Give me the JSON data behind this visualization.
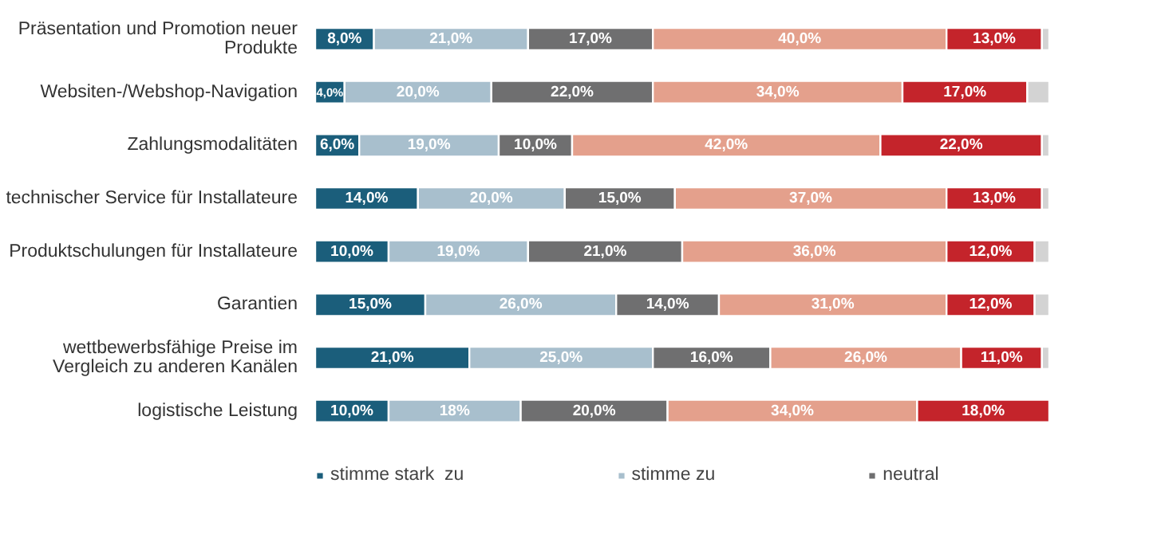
{
  "chart_data": {
    "type": "bar",
    "orientation": "horizontal",
    "stacked": true,
    "legend": "bottom",
    "grid": false,
    "categories": [
      "Präsentation und Promotion neuer Produkte",
      "Websiten-/Webshop-Navigation",
      "Zahlungsmodalitäten",
      "technischer Service für Installateure",
      "Produktschulungen für Installateure",
      "Garantien",
      "wettbewerbsfähige Preise im Vergleich zu anderen Kanälen",
      "logistische Leistung"
    ],
    "series": [
      {
        "name": "stimme stark  zu",
        "color": "#1b5e7b",
        "values": [
          8,
          4,
          6,
          14,
          10,
          15,
          21,
          10
        ],
        "value_labels": [
          "8,0%",
          "4,0%",
          "6,0%",
          "14,0%",
          "10,0%",
          "15,0%",
          "21,0%",
          "10,0%"
        ]
      },
      {
        "name": "stimme zu",
        "color": "#a8bfcd",
        "values": [
          21,
          20,
          19,
          20,
          19,
          26,
          25,
          18
        ],
        "value_labels": [
          "21,0%",
          "20,0%",
          "19,0%",
          "20,0%",
          "19,0%",
          "26,0%",
          "25,0%",
          "18%"
        ]
      },
      {
        "name": "neutral",
        "color": "#6f6f70",
        "values": [
          17,
          22,
          10,
          15,
          21,
          14,
          16,
          20
        ],
        "value_labels": [
          "17,0%",
          "22,0%",
          "10,0%",
          "15,0%",
          "21,0%",
          "14,0%",
          "16,0%",
          "20,0%"
        ]
      },
      {
        "color": "#e4a08c",
        "values": [
          40,
          34,
          42,
          37,
          36,
          31,
          26,
          34
        ],
        "value_labels": [
          "40,0%",
          "34,0%",
          "42,0%",
          "37,0%",
          "36,0%",
          "31,0%",
          "26,0%",
          "34,0%"
        ]
      },
      {
        "color": "#c4242b",
        "values": [
          13,
          17,
          22,
          13,
          12,
          12,
          11,
          18
        ],
        "value_labels": [
          "13,0%",
          "17,0%",
          "22,0%",
          "13,0%",
          "12,0%",
          "12,0%",
          "11,0%",
          "18,0%"
        ]
      },
      {
        "color": "#d3d3d3",
        "values": [
          1,
          3,
          1,
          1,
          2,
          2,
          1,
          0
        ],
        "value_labels": [
          null,
          null,
          null,
          null,
          null,
          null,
          null,
          null
        ]
      }
    ]
  }
}
